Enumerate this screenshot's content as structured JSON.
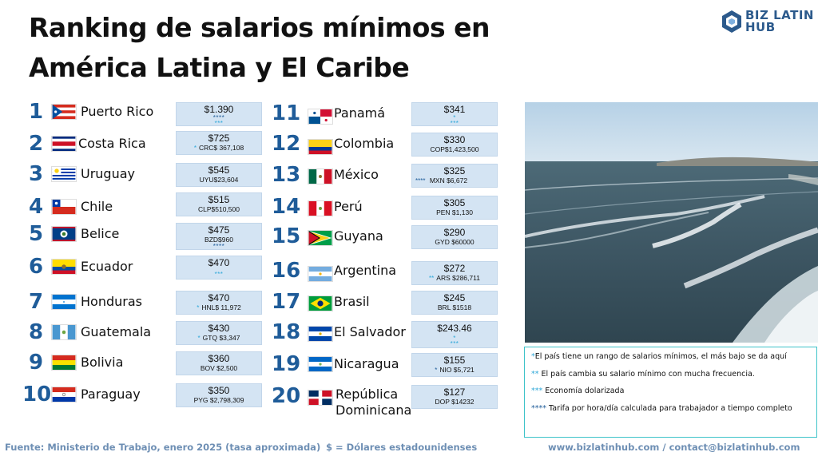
{
  "title": {
    "line1": "Ranking de salarios mínimos en",
    "line2": "América Latina y El Caribe"
  },
  "logo": {
    "line1": "BIZ LATIN",
    "line2": "HUB"
  },
  "ranking": [
    {
      "rank": "1",
      "country": "Puerto Rico",
      "usd": "$1.390",
      "stars": "****",
      "stars2": "***",
      "local": ""
    },
    {
      "rank": "2",
      "country": "Costa Rica",
      "usd": "$725",
      "stars": "*",
      "local": "CRC$ 367,108"
    },
    {
      "rank": "3",
      "country": "Uruguay",
      "usd": "$545",
      "stars": "",
      "local": "UYU$23,604"
    },
    {
      "rank": "4",
      "country": "Chile",
      "usd": "$515",
      "stars": "",
      "local": "CLP$510,500"
    },
    {
      "rank": "5",
      "country": "Belice",
      "usd": "$475",
      "stars": "****",
      "local": "BZD$960"
    },
    {
      "rank": "6",
      "country": "Ecuador",
      "usd": "$470",
      "stars": "***",
      "local": ""
    },
    {
      "rank": "7",
      "country": "Honduras",
      "usd": "$470",
      "stars": "*",
      "local": "HNL$ 11,972"
    },
    {
      "rank": "8",
      "country": "Guatemala",
      "usd": "$430",
      "stars": "*",
      "local": "GTQ $3,347"
    },
    {
      "rank": "9",
      "country": "Bolivia",
      "usd": "$360",
      "stars": "",
      "local": "BOV $2,500"
    },
    {
      "rank": "10",
      "country": "Paraguay",
      "usd": "$350",
      "stars": "",
      "local": "PYG $2,798,309"
    },
    {
      "rank": "11",
      "country": "Panamá",
      "usd": "$341",
      "stars": "*",
      "stars2": "***",
      "local": ""
    },
    {
      "rank": "12",
      "country": "Colombia",
      "usd": "$330",
      "stars": "",
      "local": "COP$1,423,500"
    },
    {
      "rank": "13",
      "country": "México",
      "usd": "$325",
      "stars": "****",
      "local": "MXN $6,672"
    },
    {
      "rank": "14",
      "country": "Perú",
      "usd": "$305",
      "stars": "",
      "local": "PEN $1,130"
    },
    {
      "rank": "15",
      "country": "Guyana",
      "usd": "$290",
      "stars": "",
      "local": "GYD $60000"
    },
    {
      "rank": "16",
      "country": "Argentina",
      "usd": "$272",
      "stars": "**",
      "local": "ARS $286,711"
    },
    {
      "rank": "17",
      "country": "Brasil",
      "usd": "$245",
      "stars": "",
      "local": "BRL $1518"
    },
    {
      "rank": "18",
      "country": "El Salvador",
      "usd": "$243.46",
      "stars": "*",
      "stars2": "***",
      "local": ""
    },
    {
      "rank": "19",
      "country": "Nicaragua",
      "usd": "$155",
      "stars": "*",
      "local": "NIO $5,721"
    },
    {
      "rank": "20",
      "country_line1": "República",
      "country_line2": "Dominicana",
      "usd": "$127",
      "stars": "",
      "local": "DOP $14232"
    }
  ],
  "legend": [
    {
      "marker": "*",
      "text": "El país tiene un rango de salarios mínimos, el más bajo se da aquí"
    },
    {
      "marker": "**",
      "text": " El país cambia su salario mínimo con mucha frecuencia."
    },
    {
      "marker": "***",
      "text": " Economía dolarizada"
    },
    {
      "marker": "****",
      "text": " Tarifa por hora/día calculada para trabajador a tiempo completo"
    }
  ],
  "footer": {
    "source": "Fuente: Ministerio de Trabajo, enero 2025 (tasa aproximada)",
    "currency": "$ = Dólares estadounidenses",
    "links": "www.bizlatinhub.com / contact@bizlatinhub.com"
  }
}
